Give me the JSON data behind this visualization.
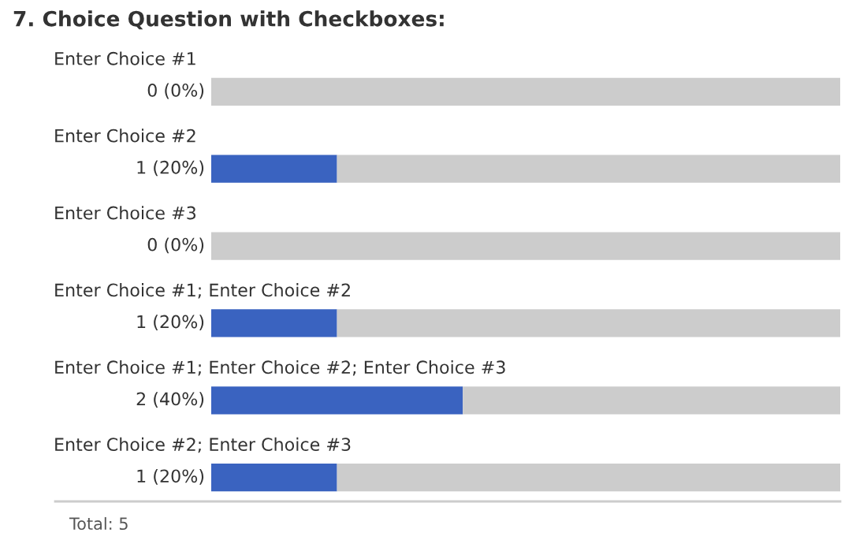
{
  "chart_data": {
    "type": "bar",
    "orientation": "horizontal",
    "stacked": true,
    "title": "7. Choice Question with Checkboxes:",
    "categories": [
      "Enter Choice #1",
      "Enter Choice #2",
      "Enter Choice #3",
      "Enter Choice #1; Enter Choice #2",
      "Enter Choice #1; Enter Choice #2; Enter Choice #3",
      "Enter Choice #2; Enter Choice #3"
    ],
    "series": [
      {
        "color": "#3a63c0",
        "values": [
          0,
          1,
          0,
          1,
          2,
          1
        ],
        "value_labels": [
          "0 (0%)",
          "1 (20%)",
          "0 (0%)",
          "1 (20%)",
          "2 (40%)",
          "1 (20%)"
        ]
      },
      {
        "color": "#cccccc",
        "values": [
          5,
          4,
          5,
          4,
          3,
          4
        ]
      }
    ],
    "xlim": [
      0,
      5
    ],
    "annotations": [
      "Total: 5"
    ]
  }
}
